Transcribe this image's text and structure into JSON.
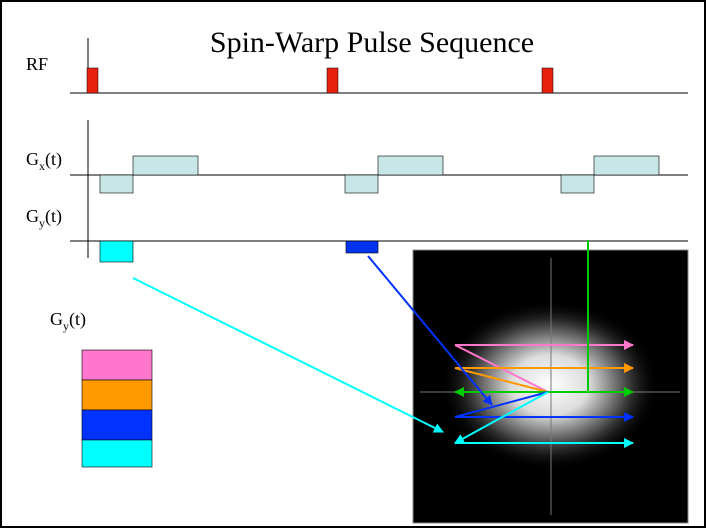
{
  "title": "Spin-Warp Pulse Sequence",
  "rf_label": "RF",
  "gx_label": {
    "base": "G",
    "sub": "x",
    "suffix": "(t)"
  },
  "gy_label": {
    "base": "G",
    "sub": "y",
    "suffix": "(t)"
  },
  "legend_label": {
    "base": "G",
    "sub": "y",
    "suffix": "(t)"
  }
}
